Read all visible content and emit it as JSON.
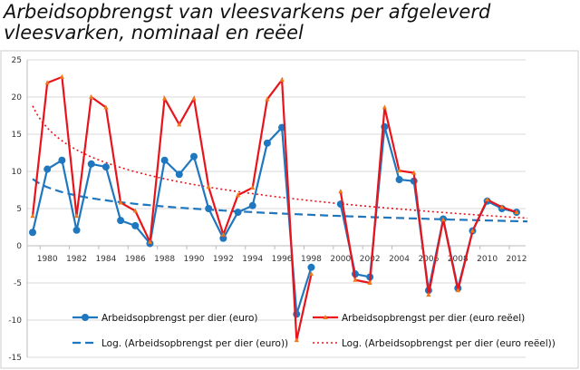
{
  "chart_data": {
    "type": "line",
    "title": "Arbeidsopbrengst van vleesvarkens  per afgeleverd\nvleesvarken, nominaal en reëel",
    "x": [
      1979,
      1980,
      1981,
      1982,
      1983,
      1984,
      1985,
      1986,
      1987,
      1988,
      1989,
      1990,
      1991,
      1992,
      1993,
      1994,
      1995,
      1996,
      1997,
      1998,
      1999,
      2000,
      2001,
      2002,
      2003,
      2004,
      2005,
      2006,
      2007,
      2008,
      2009,
      2010,
      2011,
      2012
    ],
    "x_tick_labels": [
      "1980",
      "1982",
      "1984",
      "1986",
      "1988",
      "1990",
      "1992",
      "1994",
      "1996",
      "1998",
      "2000",
      "2002",
      "2004",
      "2006",
      "2008",
      "2010",
      "2012"
    ],
    "ylim": [
      -15,
      25
    ],
    "y_ticks": [
      "-15",
      "-10",
      "-5",
      "0",
      "5",
      "10",
      "15",
      "20",
      "25"
    ],
    "grid": true,
    "legend_placement": "bottom-inside",
    "series": [
      {
        "name": "Arbeidsopbrengst per dier (euro)",
        "color": "#1f77c0",
        "style": "line-circle",
        "values": [
          1.8,
          10.3,
          11.5,
          2.1,
          11.0,
          10.6,
          3.4,
          2.7,
          0.3,
          11.5,
          9.6,
          12.0,
          5.0,
          1.0,
          4.5,
          5.4,
          13.8,
          15.9,
          -9.2,
          -2.9,
          null,
          5.6,
          -3.8,
          -4.2,
          16.0,
          8.9,
          8.7,
          -6.0,
          3.6,
          -5.7,
          2.0,
          6.0,
          5.0,
          4.5
        ]
      },
      {
        "name": "Arbeidsopbrengst per dier (euro reëel)",
        "color": "#e8141c",
        "style": "line-triangle",
        "values": [
          4.0,
          21.9,
          22.7,
          4.0,
          20.0,
          18.6,
          5.8,
          4.7,
          0.5,
          19.8,
          16.3,
          19.8,
          7.9,
          1.5,
          6.8,
          7.8,
          19.7,
          22.3,
          -12.7,
          -3.8,
          null,
          7.3,
          -4.6,
          -5.0,
          18.6,
          10.1,
          9.8,
          -6.6,
          3.5,
          -6.0,
          2.0,
          6.2,
          5.2,
          4.5
        ]
      }
    ],
    "trendlines": [
      {
        "name": "Log. (Arbeidsopbrengst per dier (euro))",
        "color": "#1f77c0",
        "style": "dashed",
        "start": 9.0,
        "end": 3.3
      },
      {
        "name": "Log. (Arbeidsopbrengst per dier (euro reëel))",
        "color": "#e8141c",
        "style": "dotted",
        "start": 18.8,
        "end": 3.8
      }
    ]
  }
}
